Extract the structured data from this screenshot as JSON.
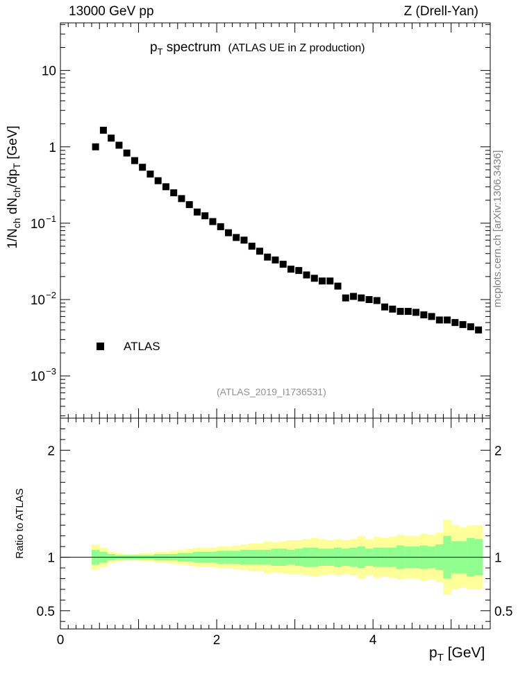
{
  "header": {
    "left": "13000 GeV pp",
    "right": "Z (Drell-Yan)"
  },
  "title": {
    "main": "p",
    "main_sub": "T",
    "main_rest": " spectrum",
    "detail": "(ATLAS UE in Z production)"
  },
  "analysis_id": "(ATLAS_2019_I1736531)",
  "watermark": "mcplots.cern.ch [arXiv:1306.3436]",
  "legend": {
    "label": "ATLAS"
  },
  "axes": {
    "x_label": "p",
    "x_label_sub": "T",
    "x_label_unit": " [GeV]",
    "y_label_prefix": "1/N",
    "y_label_sub1": "ch",
    "y_label_mid": " dN",
    "y_label_sub2": "ch",
    "y_label_mid2": "/dp",
    "y_label_sub3": "T",
    "y_label_unit": " [GeV]",
    "ratio_label": "Ratio to ATLAS"
  },
  "colors": {
    "inner_band": "#90ff90",
    "outer_band": "#ffff99",
    "marker": "#000000"
  },
  "chart_data": {
    "type": "scatter",
    "x_range": [
      0,
      5.5
    ],
    "y_range": [
      0.00028,
      42
    ],
    "y_scale": "log",
    "y_ticks": [
      {
        "value": 10,
        "label": "10"
      },
      {
        "value": 1,
        "label": "1"
      },
      {
        "value": 0.1,
        "label": "10",
        "exp": "−1"
      },
      {
        "value": 0.01,
        "label": "10",
        "exp": "−2"
      },
      {
        "value": 0.001,
        "label": "10",
        "exp": "−3"
      }
    ],
    "x_ticks": [
      {
        "value": 0,
        "label": "0"
      },
      {
        "value": 2,
        "label": "2"
      },
      {
        "value": 4,
        "label": "4"
      }
    ],
    "ratio_range": [
      0.33,
      2.3
    ],
    "ratio_ticks": [
      {
        "value": 0.5,
        "label": "0.5"
      },
      {
        "value": 1,
        "label": "1"
      },
      {
        "value": 2,
        "label": "2"
      }
    ],
    "bin_width": 0.1,
    "series": [
      {
        "name": "ATLAS",
        "x": [
          0.45,
          0.55,
          0.65,
          0.75,
          0.85,
          0.95,
          1.05,
          1.15,
          1.25,
          1.35,
          1.45,
          1.55,
          1.65,
          1.75,
          1.85,
          1.95,
          2.05,
          2.15,
          2.25,
          2.35,
          2.45,
          2.55,
          2.65,
          2.75,
          2.85,
          2.95,
          3.05,
          3.15,
          3.25,
          3.35,
          3.45,
          3.55,
          3.65,
          3.75,
          3.85,
          3.95,
          4.05,
          4.15,
          4.25,
          4.35,
          4.45,
          4.55,
          4.65,
          4.75,
          4.85,
          4.95,
          5.05,
          5.15,
          5.25,
          5.35
        ],
        "y": [
          1.0,
          1.65,
          1.3,
          1.05,
          0.83,
          0.66,
          0.54,
          0.44,
          0.36,
          0.3,
          0.25,
          0.21,
          0.175,
          0.14,
          0.125,
          0.105,
          0.09,
          0.075,
          0.065,
          0.06,
          0.05,
          0.043,
          0.036,
          0.033,
          0.029,
          0.025,
          0.024,
          0.021,
          0.019,
          0.0175,
          0.0175,
          0.015,
          0.0105,
          0.011,
          0.0105,
          0.01,
          0.0097,
          0.008,
          0.0075,
          0.007,
          0.007,
          0.0068,
          0.0063,
          0.006,
          0.0054,
          0.0054,
          0.005,
          0.0047,
          0.0044,
          0.004
        ]
      }
    ],
    "ratio_bands": {
      "inner_half_width": [
        0.07,
        0.05,
        0.03,
        0.02,
        0.02,
        0.02,
        0.02,
        0.02,
        0.03,
        0.03,
        0.03,
        0.04,
        0.04,
        0.05,
        0.05,
        0.05,
        0.06,
        0.06,
        0.06,
        0.07,
        0.07,
        0.07,
        0.07,
        0.08,
        0.08,
        0.07,
        0.08,
        0.09,
        0.09,
        0.08,
        0.08,
        0.09,
        0.08,
        0.09,
        0.1,
        0.08,
        0.09,
        0.09,
        0.09,
        0.11,
        0.1,
        0.1,
        0.11,
        0.1,
        0.12,
        0.2,
        0.15,
        0.15,
        0.18,
        0.17
      ],
      "outer_half_width": [
        0.12,
        0.09,
        0.05,
        0.04,
        0.03,
        0.03,
        0.04,
        0.04,
        0.05,
        0.05,
        0.06,
        0.07,
        0.08,
        0.09,
        0.09,
        0.09,
        0.1,
        0.1,
        0.11,
        0.12,
        0.13,
        0.13,
        0.15,
        0.14,
        0.15,
        0.16,
        0.16,
        0.17,
        0.18,
        0.17,
        0.16,
        0.17,
        0.16,
        0.17,
        0.2,
        0.17,
        0.19,
        0.18,
        0.19,
        0.21,
        0.2,
        0.2,
        0.22,
        0.21,
        0.23,
        0.35,
        0.3,
        0.28,
        0.3,
        0.3
      ]
    }
  }
}
